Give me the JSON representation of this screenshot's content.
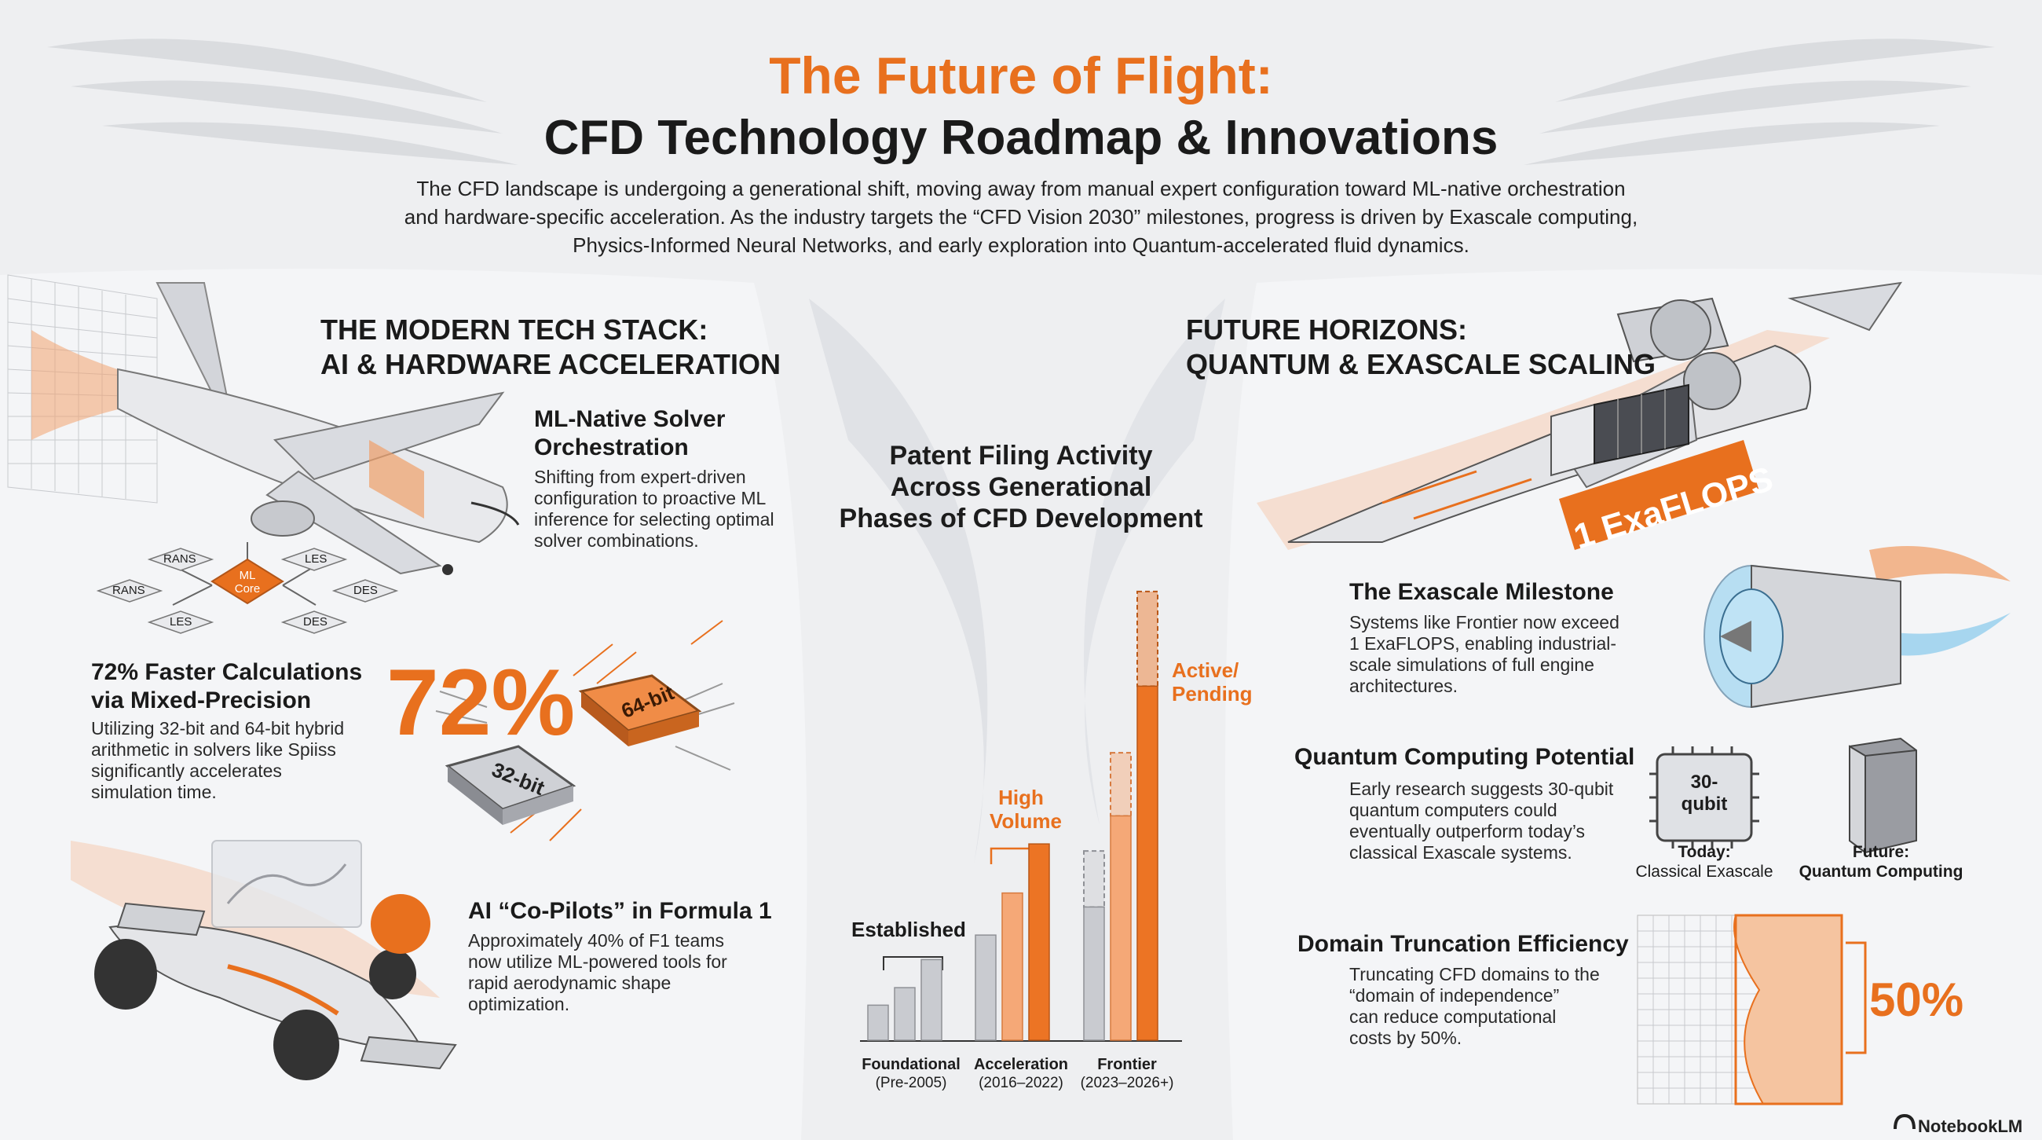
{
  "header": {
    "title_line1": "The Future of Flight:",
    "title_line2": "CFD Technology Roadmap & Innovations",
    "intro_line1": "The CFD landscape is undergoing a generational shift, moving away from manual expert configuration toward ML-native orchestration",
    "intro_line2": "and hardware-specific acceleration. As the industry targets the “CFD Vision 2030” milestones, progress is driven by Exascale computing,",
    "intro_line3": "Physics-Informed Neural Networks, and early exploration into Quantum-accelerated fluid dynamics."
  },
  "left": {
    "heading_line1": "THE MODERN TECH STACK:",
    "heading_line2": "AI & HARDWARE ACCELERATION",
    "ml_title_line1": "ML-Native Solver",
    "ml_title_line2": "Orchestration",
    "ml_text_line1": "Shifting from expert-driven",
    "ml_text_line2": "configuration to proactive ML",
    "ml_text_line3": "inference for selecting optimal",
    "ml_text_line4": "solver combinations.",
    "diagram_nodes": [
      "RANS",
      "LES",
      "RANS",
      "DES",
      "LES",
      "DES"
    ],
    "core_line1": "ML",
    "core_line2": "Core",
    "mp_title_line1": "72% Faster Calculations",
    "mp_title_line2": "via Mixed-Precision",
    "mp_text_line1": "Utilizing 32-bit and 64-bit hybrid",
    "mp_text_line2": "arithmetic in solvers like Spiiss",
    "mp_text_line3": "significantly accelerates",
    "mp_text_line4": "simulation time.",
    "big_percent": "72%",
    "chip_64": "64-bit",
    "chip_32": "32-bit",
    "f1_title": "AI “Co-Pilots” in Formula 1",
    "f1_text_line1": "Approximately 40% of F1 teams",
    "f1_text_line2": "now utilize ML-powered tools for",
    "f1_text_line3": "rapid aerodynamic shape",
    "f1_text_line4": "optimization."
  },
  "center": {
    "chart_title_line1": "Patent Filing Activity",
    "chart_title_line2": "Across Generational",
    "chart_title_line3": "Phases of CFD Development"
  },
  "chart_data": {
    "type": "bar",
    "title": "Patent Filing Activity Across Generational Phases of CFD Development",
    "categories": [
      {
        "label": "Foundational",
        "sub": "(Pre-2005)"
      },
      {
        "label": "Acceleration",
        "sub": "(2016–2022)"
      },
      {
        "label": "Frontier",
        "sub": "(2023–2026+)"
      }
    ],
    "annotations": [
      {
        "group": 0,
        "text": "Established"
      },
      {
        "group": 1,
        "text_line1": "High",
        "text_line2": "Volume"
      },
      {
        "group": 2,
        "text_line1": "Active/",
        "text_line2": "Pending"
      }
    ],
    "groups": [
      {
        "bars": [
          {
            "value": 1,
            "style": "gray"
          },
          {
            "value": 1.5,
            "style": "gray"
          },
          {
            "value": 2.3,
            "style": "gray"
          }
        ]
      },
      {
        "bars": [
          {
            "value": 3.0,
            "style": "gray"
          },
          {
            "value": 4.2,
            "style": "light-orange"
          },
          {
            "value": 5.6,
            "style": "orange"
          }
        ]
      },
      {
        "bars": [
          {
            "value": 3.8,
            "pending_top": 5.4,
            "style": "gray"
          },
          {
            "value": 6.4,
            "pending_top": 8.2,
            "style": "light-orange"
          },
          {
            "value": 10.1,
            "pending_top": 12.8,
            "style": "orange"
          }
        ]
      }
    ],
    "ylim": [
      0,
      13
    ],
    "grid": false,
    "legend": "none",
    "colors": {
      "gray": "#c9cbd0",
      "light_orange": "#f5a877",
      "orange": "#ec7424"
    }
  },
  "right": {
    "heading_line1": "FUTURE HORIZONS:",
    "heading_line2": "QUANTUM & EXASCALE SCALING",
    "banner": "1 ExaFLOPS",
    "exa_title": "The Exascale Milestone",
    "exa_text_line1": "Systems like Frontier now exceed",
    "exa_text_line2": "1 ExaFLOPS, enabling industrial-",
    "exa_text_line3": "scale simulations of full engine",
    "exa_text_line4": "architectures.",
    "q_title": "Quantum Computing Potential",
    "q_text_line1": "Early research suggests 30-qubit",
    "q_text_line2": "quantum computers could",
    "q_text_line3": "eventually outperform today’s",
    "q_text_line4": "classical Exascale systems.",
    "qubit_line1": "30-",
    "qubit_line2": "qubit",
    "today_label": "Today:",
    "today_sub": "Classical Exascale",
    "future_label": "Future:",
    "future_sub": "Quantum Computing",
    "dt_title": "Domain Truncation Efficiency",
    "dt_text_line1": "Truncating CFD domains to the",
    "dt_text_line2": "“domain of independence”",
    "dt_text_line3": "can reduce computational",
    "dt_text_line4": "costs by 50%.",
    "dt_percent": "50%"
  },
  "footer": {
    "brand": "NotebookLM"
  },
  "colors": {
    "accent": "#e8701e",
    "dark": "#1a1a1a",
    "background": "#eeeff1"
  }
}
